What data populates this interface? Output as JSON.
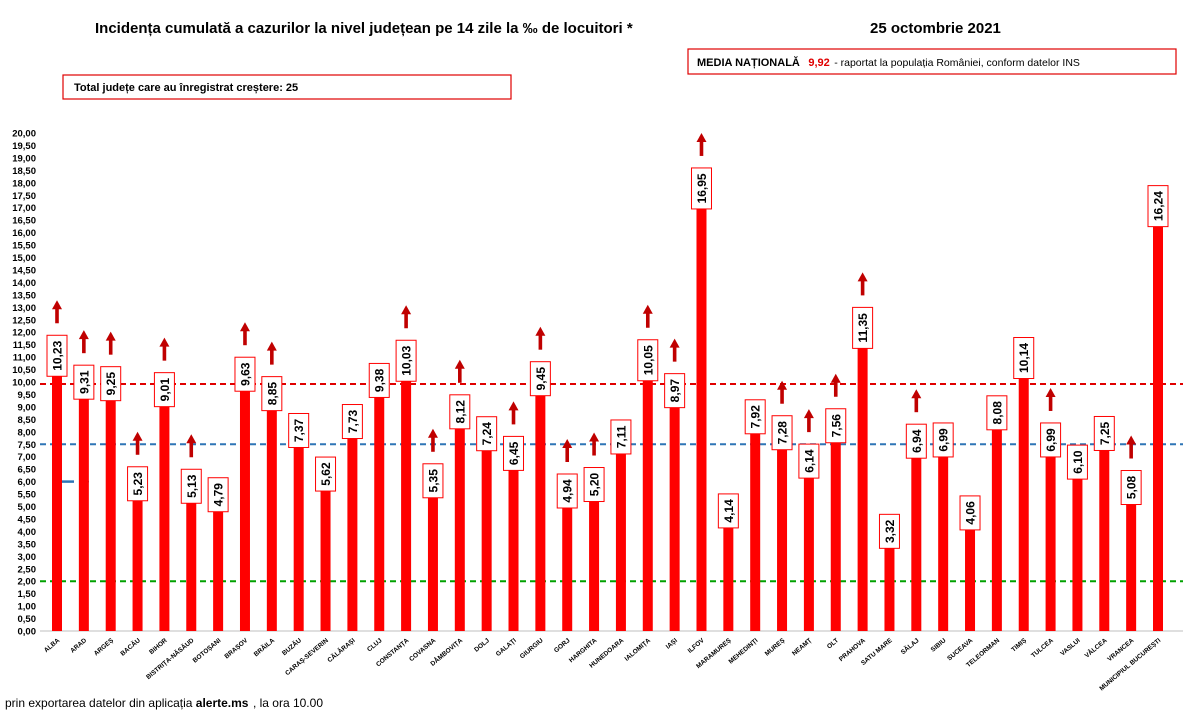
{
  "header": {
    "title": "Incidența cumulată a cazurilor la nivel județean pe 14 zile la ‰ de locuitori *",
    "date": "25 octombrie 2021"
  },
  "national_box": {
    "label": "MEDIA NAȚIONALĂ",
    "value": "9,92",
    "suffix": " -  raportat la populația României, conform datelor INS"
  },
  "total_box": {
    "text": "Total județe care au înregistrat creștere:  25"
  },
  "footer": {
    "prefix": "prin exportarea datelor din aplicația ",
    "app": "alerte.ms",
    "suffix": ", la ora 10.00"
  },
  "colors": {
    "bar": "#ff0000",
    "arrow": "#c00000",
    "label_border": "#ff0000",
    "line_national": "#e00000",
    "line_blue": "#2e75b6",
    "line_green": "#00a000"
  },
  "chart_data": {
    "type": "bar",
    "categories": [
      "ALBA",
      "ARAD",
      "ARGEȘ",
      "BACĂU",
      "BIHOR",
      "BISTRIȚA-NĂSĂUD",
      "BOTOȘANI",
      "BRAȘOV",
      "BRĂILA",
      "BUZĂU",
      "CARAȘ-SEVERIN",
      "CĂLĂRAȘI",
      "CLUJ",
      "CONSTANȚA",
      "COVASNA",
      "DÂMBOVIȚA",
      "DOLJ",
      "GALAȚI",
      "GIURGIU",
      "GORJ",
      "HARGHITA",
      "HUNEDOARA",
      "IALOMIȚA",
      "IAȘI",
      "ILFOV",
      "MARAMUREȘ",
      "MEHEDINȚI",
      "MUREȘ",
      "NEAMȚ",
      "OLT",
      "PRAHOVA",
      "SATU MARE",
      "SĂLAJ",
      "SIBIU",
      "SUCEAVA",
      "TELEORMAN",
      "TIMIȘ",
      "TULCEA",
      "VASLUI",
      "VÂLCEA",
      "VRANCEA",
      "MUNICIPIUL BUCUREȘTI"
    ],
    "values": [
      10.23,
      9.31,
      9.25,
      5.23,
      9.01,
      5.13,
      4.79,
      9.63,
      8.85,
      7.37,
      5.62,
      7.73,
      9.38,
      10.03,
      5.35,
      8.12,
      7.24,
      6.45,
      9.45,
      4.94,
      5.2,
      7.11,
      10.05,
      8.97,
      16.95,
      4.14,
      7.92,
      7.28,
      6.14,
      7.56,
      11.35,
      3.32,
      6.94,
      6.99,
      4.06,
      8.08,
      10.14,
      6.99,
      6.1,
      7.25,
      5.08,
      16.24
    ],
    "labels": [
      "10,23",
      "9,31",
      "9,25",
      "5,23",
      "9,01",
      "5,13",
      "4,79",
      "9,63",
      "8,85",
      "7,37",
      "5,62",
      "7,73",
      "9,38",
      "10,03",
      "5,35",
      "8,12",
      "7,24",
      "6,45",
      "9,45",
      "4,94",
      "5,20",
      "7,11",
      "10,05",
      "8,97",
      "16,95",
      "4,14",
      "7,92",
      "7,28",
      "6,14",
      "7,56",
      "11,35",
      "3,32",
      "6,94",
      "6,99",
      "4,06",
      "8,08",
      "10,14",
      "6,99",
      "6,10",
      "7,25",
      "5,08",
      "16,24"
    ],
    "increase": [
      true,
      true,
      true,
      true,
      true,
      true,
      false,
      true,
      true,
      false,
      false,
      false,
      false,
      true,
      true,
      true,
      false,
      true,
      true,
      true,
      true,
      false,
      true,
      true,
      true,
      false,
      false,
      true,
      true,
      true,
      true,
      false,
      true,
      false,
      false,
      false,
      false,
      true,
      false,
      false,
      true,
      false
    ],
    "reference_lines": [
      {
        "value": 9.92,
        "style": "dashed",
        "color": "#e00000"
      },
      {
        "value": 7.5,
        "style": "dashed",
        "color": "#2e75b6"
      },
      {
        "value": 2.0,
        "style": "dashed",
        "color": "#00a000"
      }
    ],
    "legend_blue_mark": {
      "value": 6.0
    },
    "ylim": [
      0,
      20
    ],
    "ytick_step": 0.5,
    "yticks": [
      "0,00",
      "0,50",
      "1,00",
      "1,50",
      "2,00",
      "2,50",
      "3,00",
      "3,50",
      "4,00",
      "4,50",
      "5,00",
      "5,50",
      "6,00",
      "6,50",
      "7,00",
      "7,50",
      "8,00",
      "8,50",
      "9,00",
      "9,50",
      "10,00",
      "10,50",
      "11,00",
      "11,50",
      "12,00",
      "12,50",
      "13,00",
      "13,50",
      "14,00",
      "14,50",
      "15,00",
      "15,50",
      "16,00",
      "16,50",
      "17,00",
      "17,50",
      "18,00",
      "18,50",
      "19,00",
      "19,50",
      "20,00"
    ]
  }
}
